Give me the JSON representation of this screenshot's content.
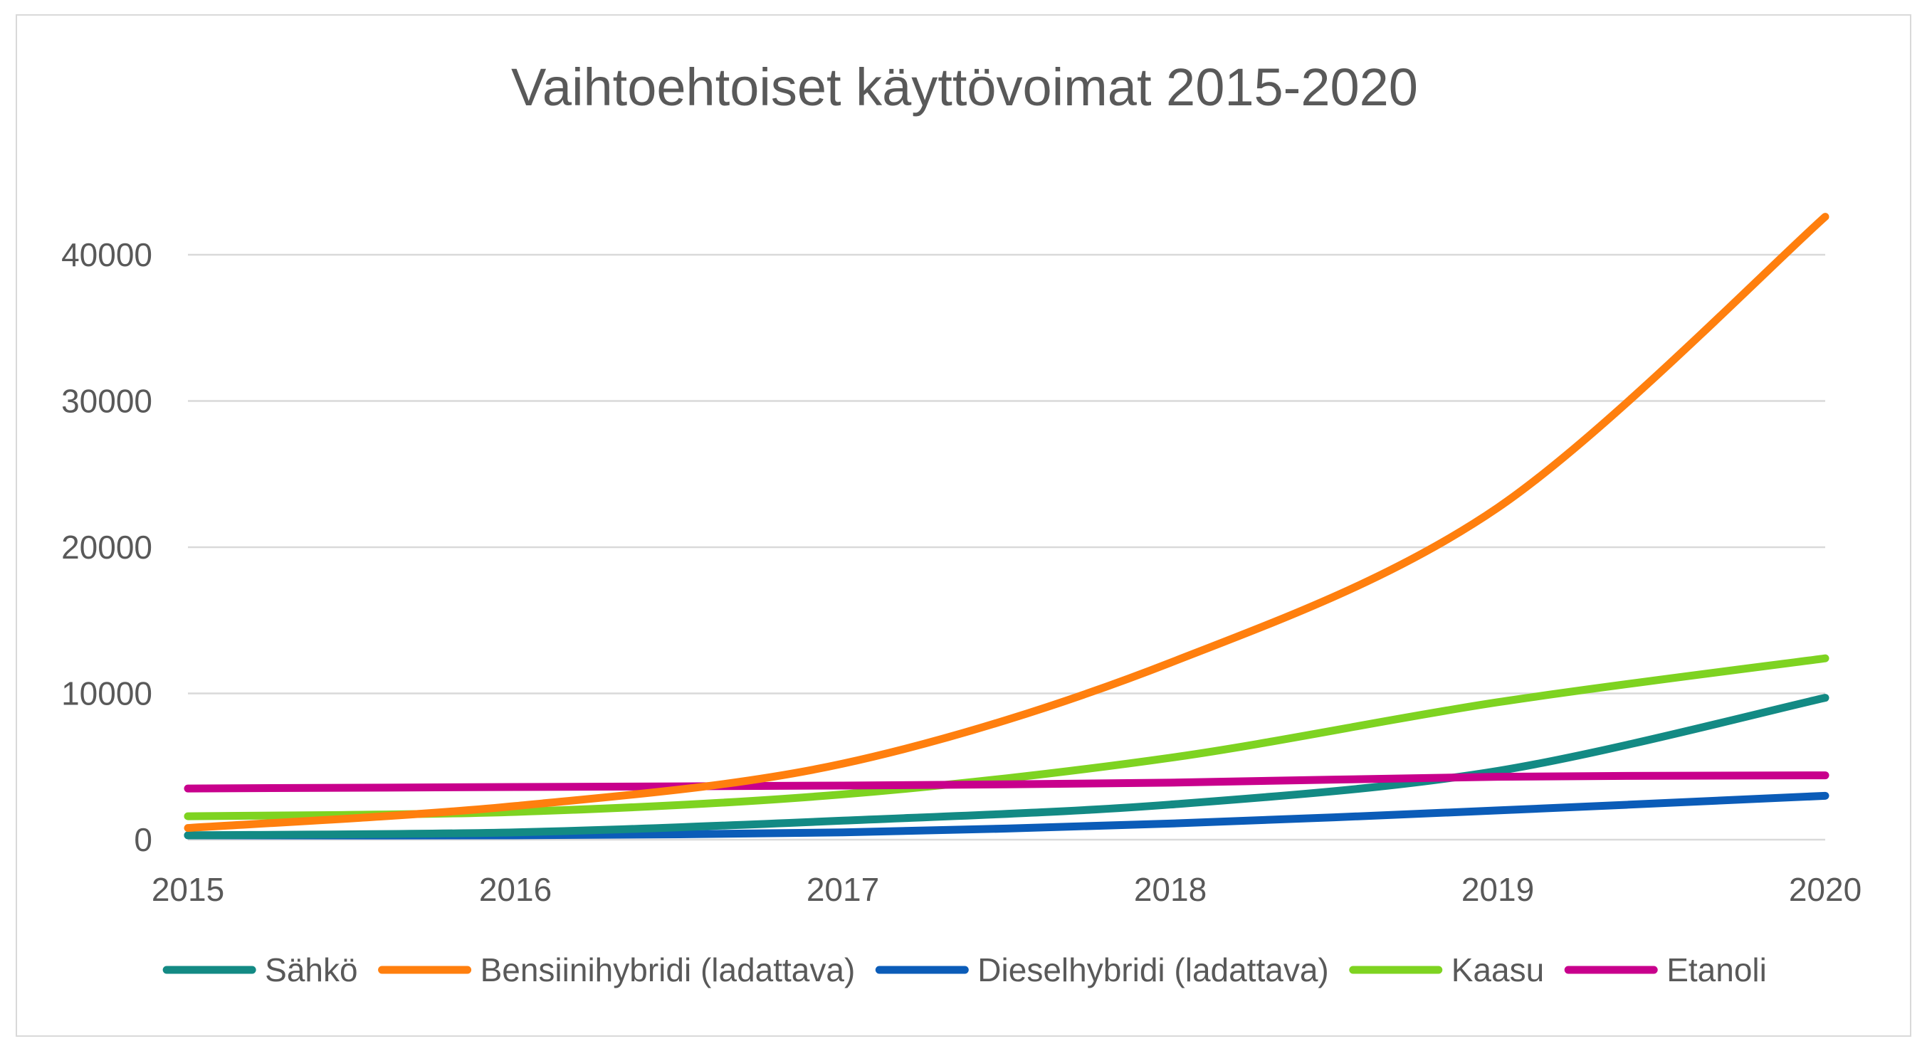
{
  "chart_data": {
    "type": "line",
    "title": "Vaihtoehtoiset käyttövoimat 2015-2020",
    "xlabel": "",
    "ylabel": "",
    "categories": [
      "2015",
      "2016",
      "2017",
      "2018",
      "2019",
      "2020"
    ],
    "ylim": [
      0,
      40000
    ],
    "yticks": [
      0,
      10000,
      20000,
      30000,
      40000
    ],
    "grid": true,
    "legend": "bottom",
    "series": [
      {
        "name": "Sähkö",
        "color": "#138A84",
        "values": [
          300,
          500,
          1300,
          2400,
          4700,
          9700
        ]
      },
      {
        "name": "Bensiinihybridi (ladattava)",
        "color": "#FF7F0E",
        "values": [
          800,
          2300,
          5200,
          12100,
          22700,
          42600
        ]
      },
      {
        "name": "Dieselhybridi (ladattava)",
        "color": "#0B5CB8",
        "values": [
          300,
          300,
          500,
          1100,
          2000,
          3000
        ]
      },
      {
        "name": "Kaasu",
        "color": "#7ED321",
        "values": [
          1600,
          1900,
          3100,
          5600,
          9400,
          12400
        ]
      },
      {
        "name": "Etanoli",
        "color": "#C8008C",
        "values": [
          3500,
          3600,
          3700,
          3900,
          4300,
          4400
        ]
      }
    ]
  }
}
